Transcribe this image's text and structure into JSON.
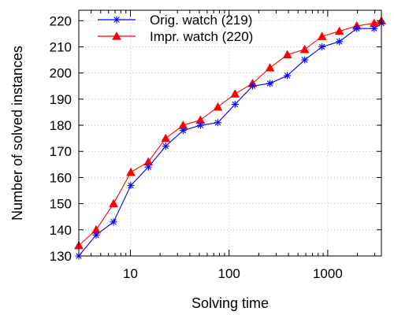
{
  "chart_data": {
    "type": "line",
    "xlabel": "Solving time",
    "ylabel": "Number of solved instances",
    "xscale": "log",
    "xlim": [
      3,
      3500
    ],
    "ylim": [
      130,
      224
    ],
    "xticks": [
      10,
      100,
      1000
    ],
    "xtick_labels": [
      "10",
      "100",
      "1000"
    ],
    "yticks": [
      130,
      140,
      150,
      160,
      170,
      180,
      190,
      200,
      210,
      220
    ],
    "yticks_labels": [
      "130",
      "140",
      "150",
      "160",
      "170",
      "180",
      "190",
      "200",
      "210",
      "220"
    ],
    "grid": true,
    "legend_position": "top-left",
    "series": [
      {
        "name": "Orig. watch (219)",
        "color": "#0000ff",
        "marker": "asterisk",
        "x": [
          3,
          4.5,
          6.75,
          10.1,
          15.2,
          22.8,
          34.2,
          51.3,
          77,
          115,
          173,
          260,
          390,
          584,
          876,
          1314,
          1971,
          2957,
          3500
        ],
        "y": [
          130,
          138,
          143,
          157,
          164,
          172,
          178,
          180,
          181,
          188,
          195,
          196,
          199,
          205,
          210,
          212,
          217,
          217,
          219
        ]
      },
      {
        "name": "Impr. watch (220)",
        "color": "#ff0000",
        "marker": "triangle",
        "x": [
          3,
          4.5,
          6.75,
          10.1,
          15.2,
          22.8,
          34.2,
          51.3,
          77,
          115,
          173,
          260,
          390,
          584,
          876,
          1314,
          1971,
          2957,
          3500
        ],
        "y": [
          134,
          140,
          150,
          162,
          166,
          175,
          180,
          182,
          187,
          192,
          196,
          202,
          207,
          209,
          214,
          216,
          218,
          219,
          220
        ]
      }
    ]
  }
}
